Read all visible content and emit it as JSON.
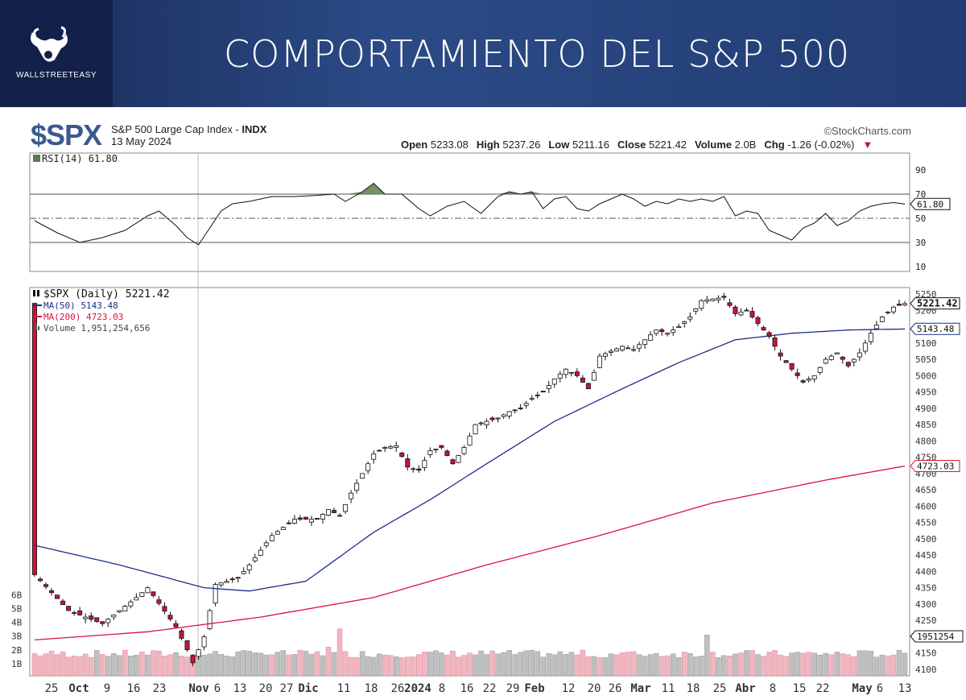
{
  "banner": {
    "title": "COMPORTAMIENTO DEL S&P 500",
    "logo_text": "WALLSTREETEASY",
    "logo_icon": "bull-head-icon"
  },
  "header": {
    "ticker": "$SPX",
    "name": "S&P 500 Large Cap Index",
    "exchange": "INDX",
    "date": "13 May 2024",
    "credit": "©StockCharts.com",
    "ohlc": [
      {
        "k": "Open",
        "v": "5233.08"
      },
      {
        "k": "High",
        "v": "5237.26"
      },
      {
        "k": "Low",
        "v": "5211.16"
      },
      {
        "k": "Close",
        "v": "5221.42"
      },
      {
        "k": "Volume",
        "v": "2.0B"
      },
      {
        "k": "Chg",
        "v": "-1.26 (-0.02%)"
      }
    ]
  },
  "rsi": {
    "legend": "RSI(14) 61.80",
    "last_value": "61.80",
    "levels": [
      "90",
      "70",
      "50",
      "30",
      "10"
    ]
  },
  "price": {
    "legend_main": "$SPX (Daily) 5221.42",
    "legend_ma50": "MA(50) 5143.48",
    "legend_ma200": "MA(200) 4723.03",
    "legend_vol": "Volume 1,951,254,656",
    "last_close": "5221.42",
    "ma50_value": "5143.48",
    "ma200_value": "4723.03",
    "last_volume": "1951254",
    "y_ticks": [
      "5250",
      "5200",
      "5150",
      "5100",
      "5050",
      "5000",
      "4950",
      "4900",
      "4850",
      "4800",
      "4750",
      "4700",
      "4650",
      "4600",
      "4550",
      "4500",
      "4450",
      "4400",
      "4350",
      "4300",
      "4250",
      "4200",
      "4150",
      "4100"
    ],
    "vol_ticks": [
      "6B",
      "5B",
      "4B",
      "3B",
      "2B",
      "1B"
    ]
  },
  "colors": {
    "up": "#ffffff",
    "down": "#c8143c",
    "ma50": "#1f2d8a",
    "ma200": "#d9143c",
    "rsi_fill": "#5a7d4e",
    "vol_up": "#bfbfbf",
    "vol_down": "#f2b6c0"
  },
  "chart_data": {
    "type": "candlestick",
    "title": "$SPX",
    "ylim": [
      4080,
      5270
    ],
    "x_labels": [
      "25",
      "Oct",
      "9",
      "16",
      "23",
      "Nov",
      "6",
      "13",
      "20",
      "27",
      "Dic",
      "11",
      "18",
      "26",
      "2024",
      "8",
      "16",
      "22",
      "29",
      "Feb",
      "12",
      "20",
      "26",
      "Mar",
      "11",
      "18",
      "25",
      "Abr",
      "8",
      "15",
      "22",
      "May",
      "6",
      "13"
    ],
    "close_path": [
      [
        0,
        4390
      ],
      [
        6,
        4280
      ],
      [
        12,
        4240
      ],
      [
        18,
        4320
      ],
      [
        20,
        4350
      ],
      [
        25,
        4230
      ],
      [
        27,
        4160
      ],
      [
        28,
        4120
      ],
      [
        30,
        4200
      ],
      [
        32,
        4360
      ],
      [
        36,
        4380
      ],
      [
        38,
        4420
      ],
      [
        42,
        4510
      ],
      [
        46,
        4560
      ],
      [
        50,
        4560
      ],
      [
        52,
        4590
      ],
      [
        54,
        4570
      ],
      [
        56,
        4640
      ],
      [
        58,
        4700
      ],
      [
        60,
        4760
      ],
      [
        62,
        4780
      ],
      [
        64,
        4785
      ],
      [
        66,
        4720
      ],
      [
        68,
        4710
      ],
      [
        70,
        4770
      ],
      [
        72,
        4780
      ],
      [
        74,
        4730
      ],
      [
        76,
        4780
      ],
      [
        78,
        4850
      ],
      [
        82,
        4870
      ],
      [
        84,
        4890
      ],
      [
        86,
        4900
      ],
      [
        88,
        4930
      ],
      [
        90,
        4950
      ],
      [
        92,
        4990
      ],
      [
        94,
        5020
      ],
      [
        96,
        5000
      ],
      [
        98,
        4960
      ],
      [
        100,
        5060
      ],
      [
        104,
        5090
      ],
      [
        106,
        5080
      ],
      [
        108,
        5110
      ],
      [
        110,
        5140
      ],
      [
        112,
        5130
      ],
      [
        114,
        5150
      ],
      [
        116,
        5180
      ],
      [
        118,
        5230
      ],
      [
        122,
        5240
      ],
      [
        124,
        5190
      ],
      [
        126,
        5200
      ],
      [
        128,
        5160
      ],
      [
        130,
        5120
      ],
      [
        132,
        5060
      ],
      [
        134,
        5020
      ],
      [
        136,
        4980
      ],
      [
        138,
        5000
      ],
      [
        140,
        5050
      ],
      [
        142,
        5070
      ],
      [
        144,
        5030
      ],
      [
        146,
        5070
      ],
      [
        148,
        5130
      ],
      [
        150,
        5180
      ],
      [
        152,
        5210
      ],
      [
        154,
        5221
      ]
    ],
    "ma50": [
      [
        0,
        4480
      ],
      [
        15,
        4420
      ],
      [
        30,
        4350
      ],
      [
        38,
        4340
      ],
      [
        48,
        4370
      ],
      [
        60,
        4520
      ],
      [
        70,
        4620
      ],
      [
        80,
        4730
      ],
      [
        92,
        4860
      ],
      [
        104,
        4960
      ],
      [
        114,
        5040
      ],
      [
        124,
        5110
      ],
      [
        134,
        5130
      ],
      [
        144,
        5140
      ],
      [
        154,
        5143
      ]
    ],
    "ma200": [
      [
        0,
        4190
      ],
      [
        20,
        4215
      ],
      [
        40,
        4260
      ],
      [
        60,
        4320
      ],
      [
        80,
        4420
      ],
      [
        100,
        4510
      ],
      [
        120,
        4610
      ],
      [
        140,
        4680
      ],
      [
        154,
        4723
      ]
    ],
    "rsi": [
      [
        0,
        48
      ],
      [
        4,
        38
      ],
      [
        8,
        30
      ],
      [
        12,
        34
      ],
      [
        16,
        40
      ],
      [
        20,
        52
      ],
      [
        22,
        56
      ],
      [
        25,
        44
      ],
      [
        27,
        34
      ],
      [
        29,
        28
      ],
      [
        31,
        42
      ],
      [
        33,
        56
      ],
      [
        35,
        62
      ],
      [
        38,
        64
      ],
      [
        42,
        68
      ],
      [
        46,
        68
      ],
      [
        50,
        69
      ],
      [
        53,
        70
      ],
      [
        55,
        64
      ],
      [
        58,
        72
      ],
      [
        60,
        79
      ],
      [
        62,
        70
      ],
      [
        65,
        70
      ],
      [
        68,
        58
      ],
      [
        70,
        52
      ],
      [
        73,
        60
      ],
      [
        76,
        64
      ],
      [
        79,
        54
      ],
      [
        82,
        68
      ],
      [
        84,
        72
      ],
      [
        86,
        70
      ],
      [
        88,
        72
      ],
      [
        90,
        58
      ],
      [
        92,
        66
      ],
      [
        94,
        68
      ],
      [
        96,
        58
      ],
      [
        98,
        56
      ],
      [
        100,
        62
      ],
      [
        104,
        70
      ],
      [
        106,
        66
      ],
      [
        108,
        60
      ],
      [
        110,
        64
      ],
      [
        112,
        62
      ],
      [
        114,
        66
      ],
      [
        116,
        64
      ],
      [
        118,
        66
      ],
      [
        120,
        64
      ],
      [
        122,
        68
      ],
      [
        124,
        52
      ],
      [
        126,
        56
      ],
      [
        128,
        54
      ],
      [
        130,
        40
      ],
      [
        132,
        36
      ],
      [
        134,
        32
      ],
      [
        136,
        42
      ],
      [
        138,
        46
      ],
      [
        140,
        54
      ],
      [
        142,
        44
      ],
      [
        144,
        48
      ],
      [
        146,
        56
      ],
      [
        148,
        60
      ],
      [
        150,
        62
      ],
      [
        152,
        63
      ],
      [
        154,
        61.8
      ]
    ],
    "volume_ticks": [
      "6B",
      "5B",
      "4B",
      "3B",
      "2B",
      "1B"
    ]
  }
}
